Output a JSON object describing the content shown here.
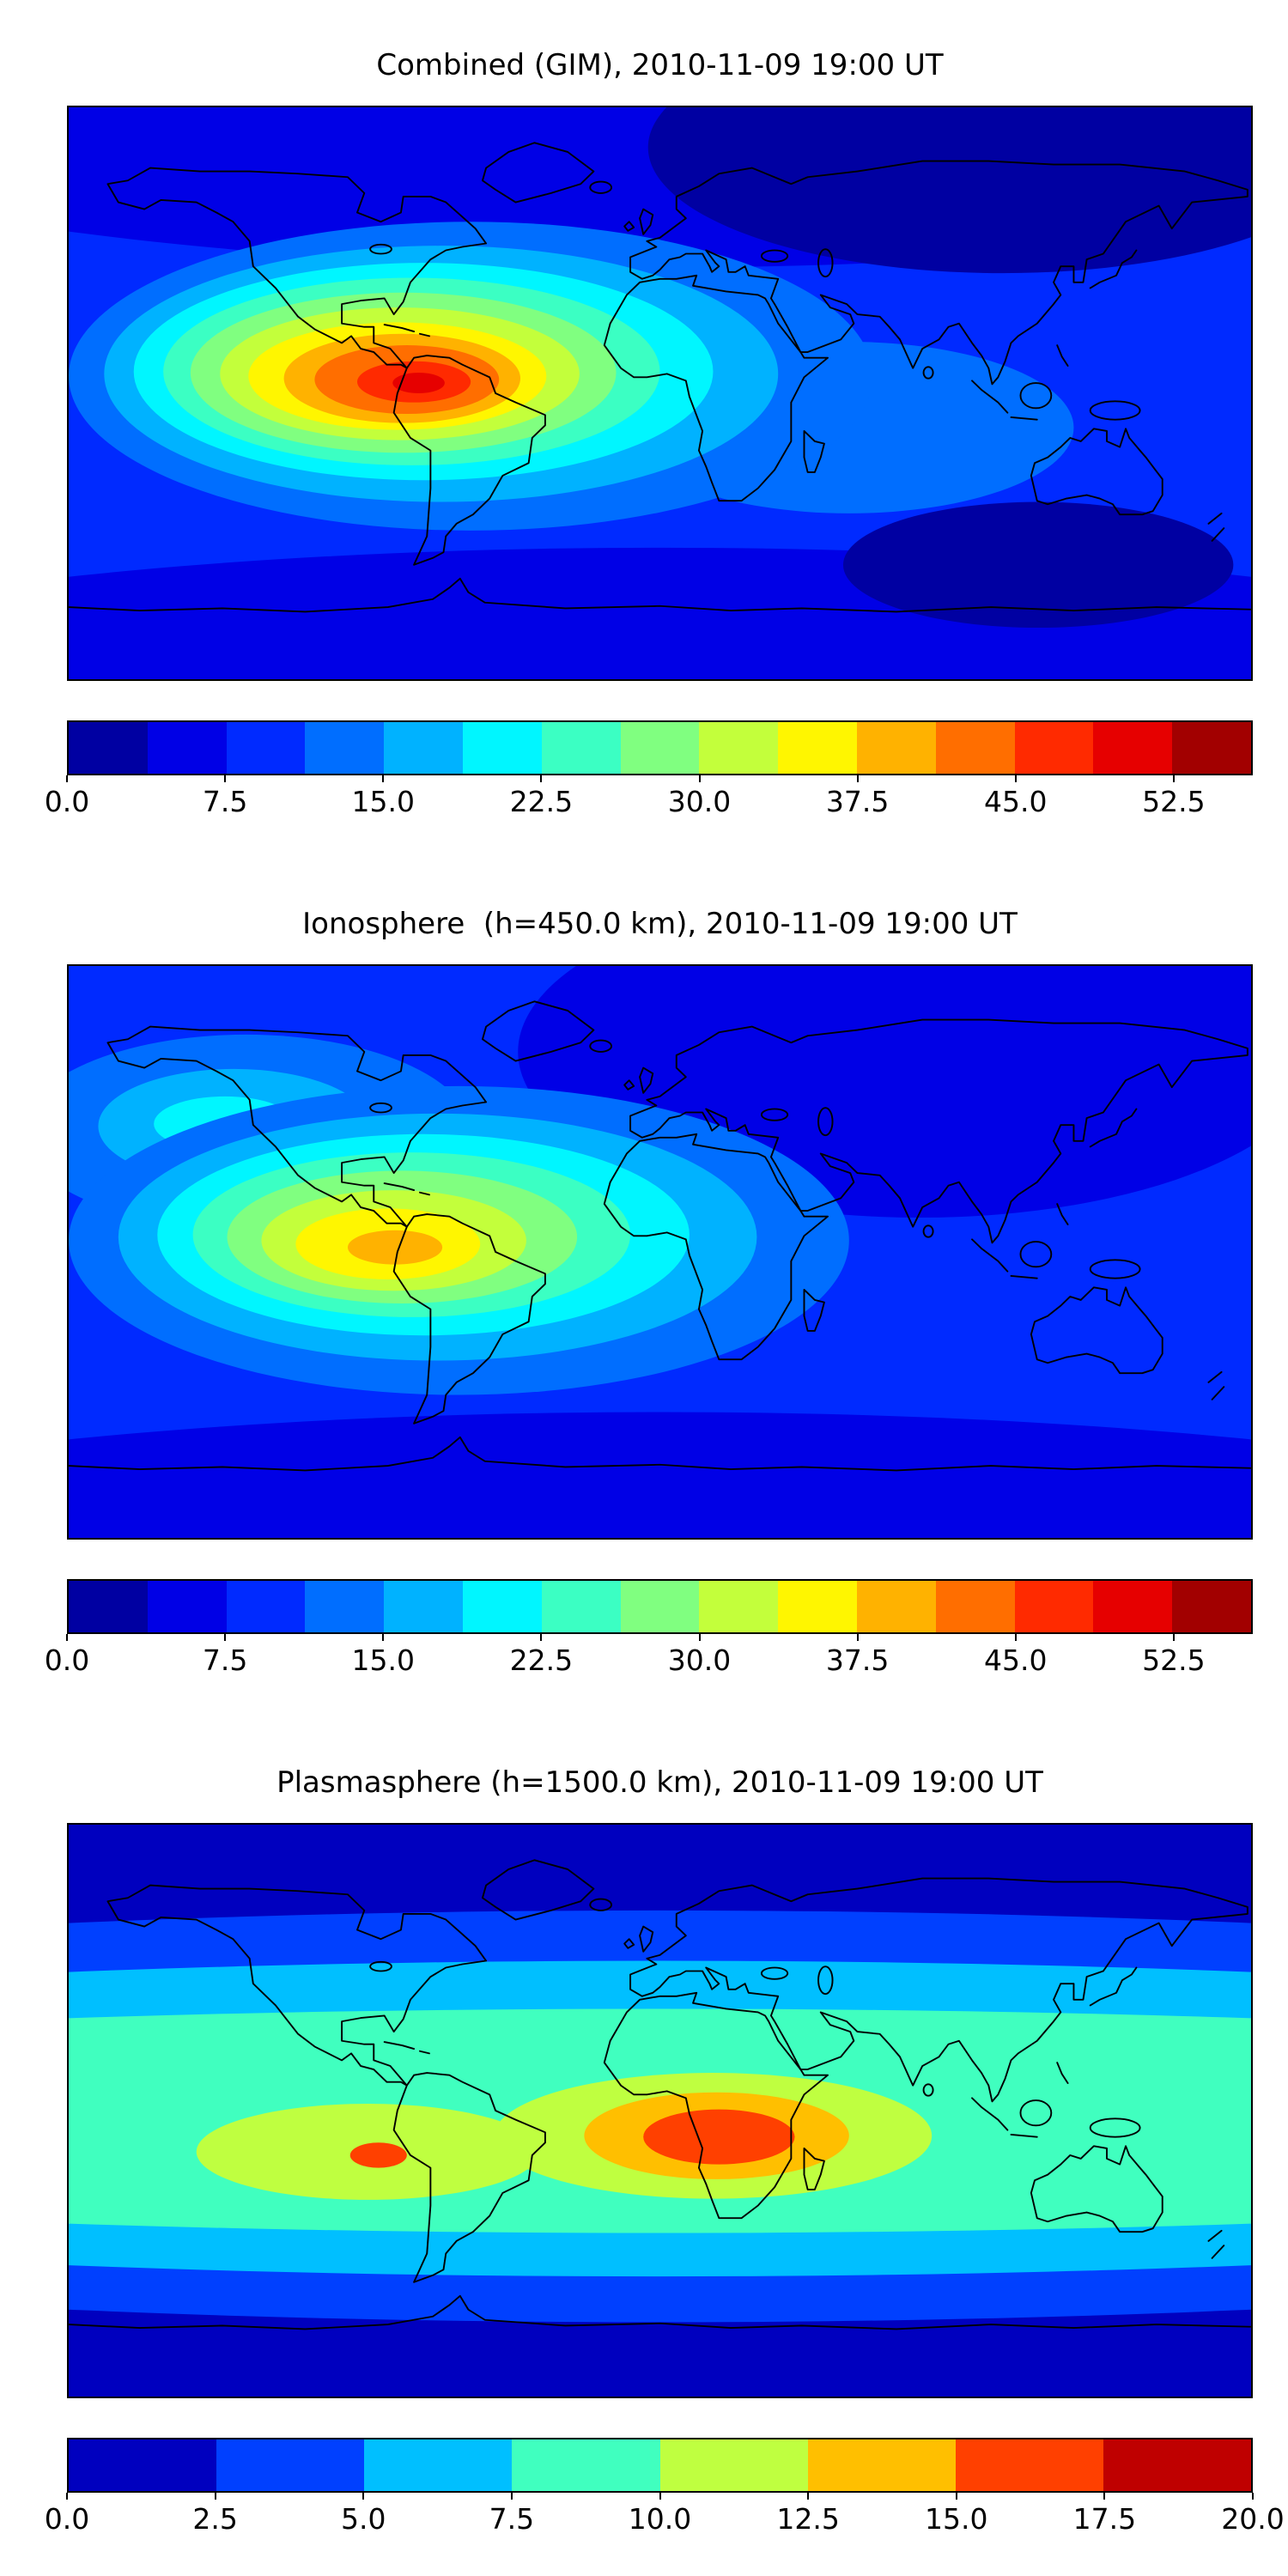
{
  "page": {
    "background": "#ffffff"
  },
  "chart_data": [
    {
      "type": "heatmap",
      "title": "Combined (GIM), 2010-11-09 19:00 UT",
      "datetime": "2010-11-09 19:00 UT",
      "projection": "equirectangular-world",
      "colorbar": {
        "vmin": 0,
        "vmax": 56.25,
        "tick_values": [
          0,
          7.5,
          15,
          22.5,
          30,
          37.5,
          45,
          52.5
        ],
        "tick_labels": [
          "0.0",
          "7.5",
          "15.0",
          "22.5",
          "30.0",
          "37.5",
          "45.0",
          "52.5"
        ],
        "palette": [
          "#0000a2",
          "#0000e6",
          "#002aff",
          "#006eff",
          "#00b2ff",
          "#00f6ff",
          "#3bffc3",
          "#80ff80",
          "#c3ff3b",
          "#fff600",
          "#ffb200",
          "#ff6e00",
          "#ff2a00",
          "#e60000",
          "#a20000"
        ]
      },
      "field": {
        "background": "#002aff",
        "layers": [
          [
            500,
            -70,
            950,
            210,
            "#0000e6"
          ],
          [
            790,
            35,
            300,
            110,
            "#0000a2"
          ],
          [
            500,
            555,
            950,
            170,
            "#0000e6"
          ],
          [
            820,
            400,
            165,
            55,
            "#0000a2"
          ],
          [
            660,
            280,
            190,
            75,
            "#006eff"
          ],
          [
            340,
            235,
            340,
            135,
            "#006eff"
          ],
          [
            315,
            233,
            285,
            112,
            "#00b2ff"
          ],
          [
            300,
            231,
            245,
            95,
            "#00f6ff"
          ],
          [
            290,
            231,
            210,
            82,
            "#3bffc3"
          ],
          [
            283,
            232,
            180,
            70,
            "#80ff80"
          ],
          [
            280,
            233,
            152,
            58,
            "#c3ff3b"
          ],
          [
            278,
            235,
            126,
            47,
            "#fff600"
          ],
          [
            282,
            237,
            100,
            39,
            "#ffb200"
          ],
          [
            286,
            238,
            78,
            30,
            "#ff6e00"
          ],
          [
            292,
            240,
            48,
            18,
            "#ff2a00"
          ],
          [
            296,
            241,
            22,
            9,
            "#e60000"
          ]
        ]
      }
    },
    {
      "type": "heatmap",
      "title": "Ionosphere  (h=450.0 km), 2010-11-09 19:00 UT",
      "datetime": "2010-11-09 19:00 UT",
      "projection": "equirectangular-world",
      "colorbar": {
        "vmin": 0,
        "vmax": 56.25,
        "tick_values": [
          0,
          7.5,
          15,
          22.5,
          30,
          37.5,
          45,
          52.5
        ],
        "tick_labels": [
          "0.0",
          "7.5",
          "15.0",
          "22.5",
          "30.0",
          "37.5",
          "45.0",
          "52.5"
        ],
        "palette": [
          "#0000a2",
          "#0000e6",
          "#002aff",
          "#006eff",
          "#00b2ff",
          "#00f6ff",
          "#3bffc3",
          "#80ff80",
          "#c3ff3b",
          "#fff600",
          "#ffb200",
          "#ff6e00",
          "#ff2a00",
          "#e60000",
          "#a20000"
        ]
      },
      "field": {
        "background": "#002aff",
        "layers": [
          [
            720,
            75,
            340,
            145,
            "#0000e6"
          ],
          [
            500,
            550,
            950,
            160,
            "#0000e6"
          ],
          [
            150,
            145,
            190,
            85,
            "#006eff"
          ],
          [
            140,
            140,
            115,
            50,
            "#00b2ff"
          ],
          [
            132,
            138,
            60,
            24,
            "#00f6ff"
          ],
          [
            330,
            240,
            330,
            135,
            "#006eff"
          ],
          [
            312,
            237,
            270,
            108,
            "#00b2ff"
          ],
          [
            300,
            235,
            225,
            88,
            "#00f6ff"
          ],
          [
            290,
            235,
            185,
            72,
            "#3bffc3"
          ],
          [
            282,
            237,
            148,
            58,
            "#80ff80"
          ],
          [
            275,
            240,
            112,
            44,
            "#c3ff3b"
          ],
          [
            270,
            243,
            78,
            31,
            "#fff600"
          ],
          [
            276,
            246,
            40,
            15,
            "#ffb200"
          ]
        ]
      }
    },
    {
      "type": "heatmap",
      "title": "Plasmasphere (h=1500.0 km), 2010-11-09 19:00 UT",
      "datetime": "2010-11-09 19:00 UT",
      "projection": "equirectangular-world",
      "colorbar": {
        "vmin": 0,
        "vmax": 20,
        "tick_values": [
          0,
          2.5,
          5,
          7.5,
          10,
          12.5,
          15,
          17.5,
          20
        ],
        "tick_labels": [
          "0.0",
          "2.5",
          "5.0",
          "7.5",
          "10.0",
          "12.5",
          "15.0",
          "17.5",
          "20.0"
        ],
        "palette": [
          "#0000bf",
          "#0040ff",
          "#00bfff",
          "#40ffbf",
          "#bfff40",
          "#ffbf00",
          "#ff4000",
          "#bf0000"
        ]
      },
      "field": {
        "background": "#0000bf",
        "layers": [
          [
            500,
            255,
            1450,
            180,
            "#0040ff"
          ],
          [
            500,
            257,
            1350,
            138,
            "#00bfff"
          ],
          [
            500,
            259,
            1250,
            98,
            "#40ffbf"
          ],
          [
            545,
            272,
            185,
            55,
            "#bfff40"
          ],
          [
            253,
            286,
            145,
            42,
            "#bfff40"
          ],
          [
            548,
            272,
            112,
            38,
            "#ffbf00"
          ],
          [
            550,
            273,
            64,
            24,
            "#ff4000"
          ],
          [
            262,
            289,
            24,
            11,
            "#ff4000"
          ]
        ]
      }
    }
  ]
}
